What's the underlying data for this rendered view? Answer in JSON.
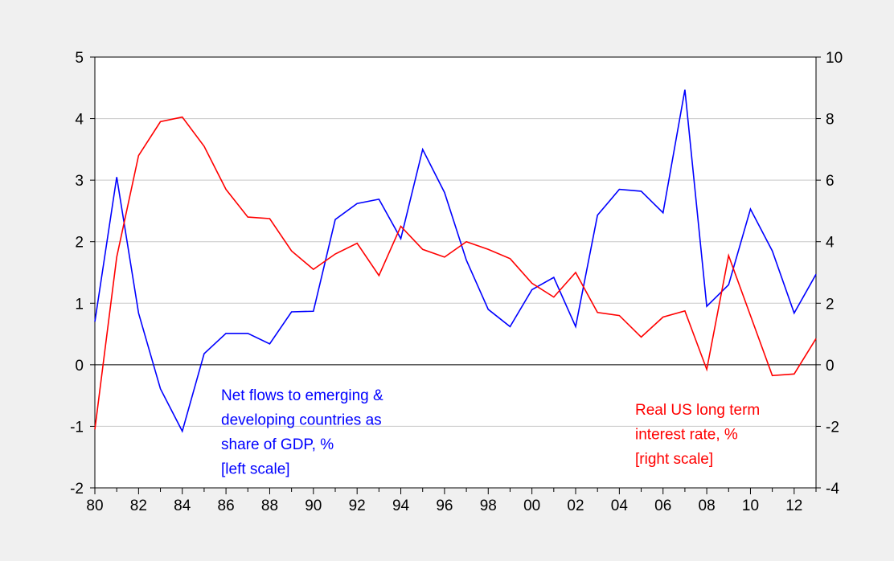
{
  "chart_data": {
    "type": "line",
    "categories": [
      "80",
      null,
      "82",
      null,
      "84",
      null,
      "86",
      null,
      "88",
      null,
      "90",
      null,
      "92",
      null,
      "94",
      null,
      "96",
      null,
      "98",
      null,
      "00",
      null,
      "02",
      null,
      "04",
      null,
      "06",
      null,
      "08",
      null,
      "10",
      null,
      "12",
      null
    ],
    "series": [
      {
        "name": "Net flows to emerging & developing countries as share of GDP, %",
        "color": "#0000ff",
        "axis": "y",
        "values": [
          0.7,
          3.05,
          0.84,
          -0.39,
          -1.08,
          0.18,
          0.51,
          0.51,
          0.34,
          0.86,
          0.87,
          2.36,
          2.62,
          2.69,
          2.05,
          3.5,
          2.8,
          1.7,
          0.9,
          0.62,
          1.22,
          1.42,
          0.62,
          2.43,
          2.85,
          2.82,
          2.47,
          4.47,
          0.95,
          1.3,
          2.53,
          1.85,
          0.84,
          1.47
        ]
      },
      {
        "name": "Real US long term interest rate, %",
        "color": "#ff0000",
        "axis": "y2",
        "values": [
          -2.1,
          3.5,
          6.8,
          7.9,
          8.05,
          7.1,
          5.7,
          4.8,
          4.75,
          3.7,
          3.1,
          3.6,
          3.95,
          2.9,
          4.5,
          3.75,
          3.5,
          4.0,
          3.75,
          3.45,
          2.65,
          2.2,
          3.0,
          1.7,
          1.6,
          0.9,
          1.55,
          1.75,
          -0.15,
          3.55,
          1.6,
          -0.35,
          -0.3,
          0.85
        ]
      }
    ],
    "ylim": [
      -2,
      5
    ],
    "yticks": [
      -2,
      -1,
      0,
      1,
      2,
      3,
      4,
      5
    ],
    "y2lim": [
      -4,
      10
    ],
    "y2ticks": [
      -4,
      -2,
      0,
      2,
      4,
      6,
      8,
      10
    ],
    "grid": true,
    "annotations": [
      {
        "color": "#0000ff",
        "lines": [
          "Net flows to emerging &",
          "developing countries as",
          "share of GDP, %",
          "[left scale]"
        ]
      },
      {
        "color": "#ff0000",
        "lines": [
          "Real US long term",
          "interest rate, %",
          "[right scale]"
        ]
      }
    ]
  }
}
